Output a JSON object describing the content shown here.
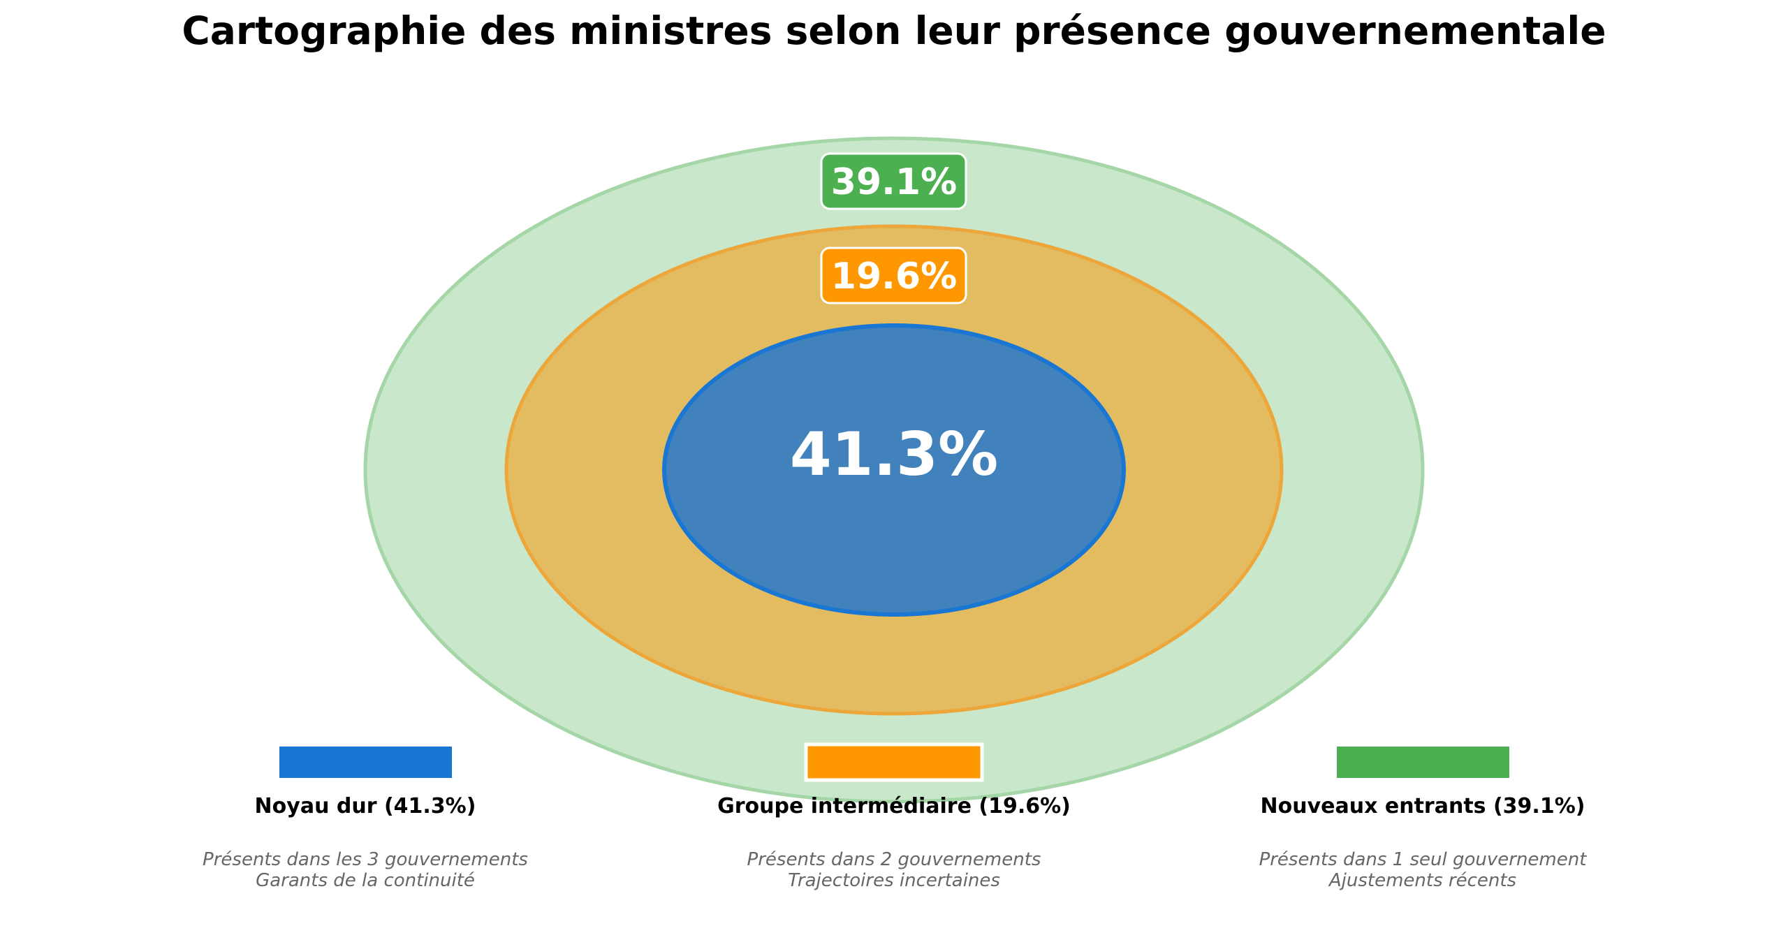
{
  "chart_data": {
    "type": "nested-ellipses",
    "title": "Cartographie des ministres selon leur présence gouvernementale",
    "series": [
      {
        "name": "Noyau dur",
        "value": 41.3,
        "label": "41.3%",
        "legend": "Noyau dur (41.3%)",
        "desc1": "Présents dans les 3 gouvernements",
        "desc2": "Garants de la continuité",
        "color": "#1976D2",
        "fill": "#4282BC"
      },
      {
        "name": "Groupe intermédiaire",
        "value": 19.6,
        "label": "19.6%",
        "legend": "Groupe intermédiaire (19.6%)",
        "desc1": "Présents dans 2 gouvernements",
        "desc2": "Trajectoires incertaines",
        "color": "#FF9800",
        "fill": "#E3BC62"
      },
      {
        "name": "Nouveaux entrants",
        "value": 39.1,
        "label": "39.1%",
        "legend": "Nouveaux entrants (39.1%)",
        "desc1": "Présents dans 1 seul gouvernement",
        "desc2": "Ajustements récents",
        "color": "#4CAF50",
        "fill": "#C9E7CB"
      }
    ],
    "legend_position": "bottom"
  }
}
